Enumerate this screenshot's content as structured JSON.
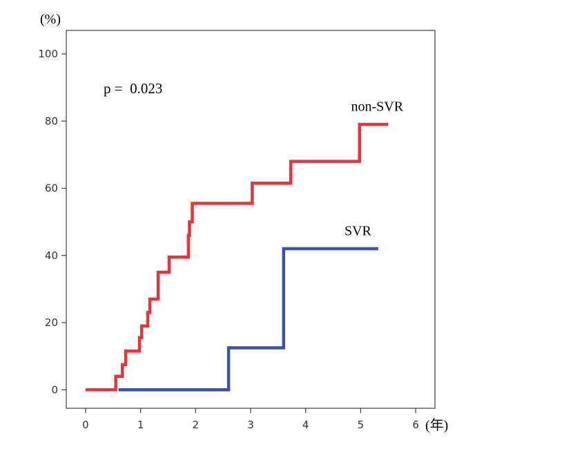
{
  "chart_data": {
    "type": "line",
    "step": true,
    "xlabel": "(年)",
    "ylabel": "(%)",
    "xlim": [
      -0.35,
      6.35
    ],
    "ylim": [
      -5.5,
      107
    ],
    "x_ticks": [
      0,
      1,
      2,
      3,
      4,
      5,
      6
    ],
    "x_tick_labels": [
      "0",
      "1",
      "2",
      "3",
      "4",
      "5",
      "6"
    ],
    "y_ticks": [
      0,
      20,
      40,
      60,
      80,
      100
    ],
    "y_tick_labels": [
      "0",
      "20",
      "40",
      "60",
      "80",
      "100"
    ],
    "grid": false,
    "annotation": "p =  0.023",
    "series": [
      {
        "name": "non-SVR",
        "color": "#e8323c",
        "points": [
          [
            0,
            0
          ],
          [
            0.55,
            0
          ],
          [
            0.55,
            4
          ],
          [
            0.67,
            4
          ],
          [
            0.67,
            7.5
          ],
          [
            0.73,
            7.5
          ],
          [
            0.73,
            11.5
          ],
          [
            0.98,
            11.5
          ],
          [
            0.98,
            15.5
          ],
          [
            1.02,
            15.5
          ],
          [
            1.02,
            19
          ],
          [
            1.13,
            19
          ],
          [
            1.13,
            23
          ],
          [
            1.17,
            23
          ],
          [
            1.17,
            27
          ],
          [
            1.32,
            27
          ],
          [
            1.32,
            35
          ],
          [
            1.52,
            35
          ],
          [
            1.52,
            39.5
          ],
          [
            1.87,
            39.5
          ],
          [
            1.87,
            46
          ],
          [
            1.89,
            46
          ],
          [
            1.89,
            50
          ],
          [
            1.94,
            50
          ],
          [
            1.94,
            55.5
          ],
          [
            3.03,
            55.5
          ],
          [
            3.03,
            61.5
          ],
          [
            3.73,
            61.5
          ],
          [
            3.73,
            68
          ],
          [
            4.98,
            68
          ],
          [
            4.98,
            79
          ],
          [
            5.5,
            79
          ]
        ]
      },
      {
        "name": "SVR",
        "color": "#3a52a8",
        "points": [
          [
            0.6,
            0
          ],
          [
            2.6,
            0
          ],
          [
            2.6,
            12.5
          ],
          [
            3.6,
            12.5
          ],
          [
            3.6,
            42
          ],
          [
            5.32,
            42
          ]
        ]
      }
    ],
    "series_labels": [
      {
        "text": "non-SVR",
        "x": 5.3,
        "y": 83
      },
      {
        "text": "SVR",
        "x": 4.95,
        "y": 46
      }
    ]
  },
  "colors": {
    "axis": "#404040",
    "frame": "#404040"
  }
}
